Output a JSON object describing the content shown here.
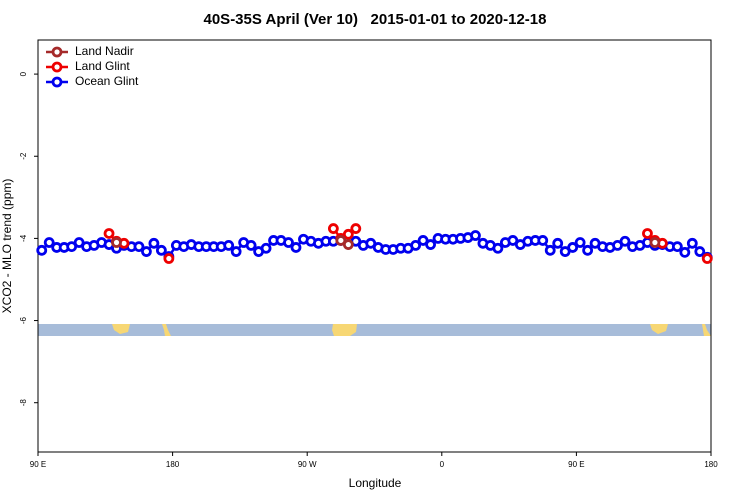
{
  "chart_data": {
    "type": "line",
    "title": "40S-35S April (Ver 10)   2015-01-01 to 2020-12-18",
    "x_label": "Longitude",
    "y_label": "XCO2 - MLO trend (ppm)",
    "xlim": [
      90,
      540
    ],
    "ylim": [
      -9.2,
      0.83
    ],
    "xticks": [
      {
        "value": 90,
        "label": "90 E"
      },
      180,
      {
        "value": 270,
        "label": "90 W"
      },
      {
        "value": 360,
        "label": "0"
      },
      {
        "value": 450,
        "label": "90 E"
      },
      {
        "value": 540,
        "label": "180"
      }
    ],
    "yticks": [
      0,
      -2,
      -4,
      -6,
      -8
    ],
    "legend": "top-left",
    "series": [
      {
        "name": "Land Nadir",
        "color": "#a52a2a",
        "x": [
          142.5,
          292.5,
          297.5,
          502.5
        ],
        "values": [
          -4.1,
          -4.05,
          -4.15,
          -4.1
        ]
      },
      {
        "name": "Land Glint",
        "color": "#ee0000",
        "x": [
          137.5,
          142.5,
          147.5,
          177.5,
          287.5,
          292.5,
          297.5,
          302.5,
          497.5,
          502.5,
          507.5,
          537.5
        ],
        "values": [
          -3.88,
          -4.07,
          -4.12,
          -4.49,
          -3.76,
          -4.0,
          -3.9,
          -3.76,
          -3.88,
          -4.05,
          -4.12,
          -4.49
        ]
      },
      {
        "name": "Ocean Glint",
        "color": "#0000ee",
        "x": [
          92.5,
          97.5,
          102.5,
          107.5,
          112.5,
          117.5,
          122.5,
          127.5,
          132.5,
          137.5,
          142.5,
          147.5,
          152.5,
          157.5,
          162.5,
          167.5,
          172.5,
          177.5,
          182.5,
          187.5,
          192.5,
          197.5,
          202.5,
          207.5,
          212.5,
          217.5,
          222.5,
          227.5,
          232.5,
          237.5,
          242.5,
          247.5,
          252.5,
          257.5,
          262.5,
          267.5,
          272.5,
          277.5,
          282.5,
          287.5,
          292.5,
          297.5,
          302.5,
          307.5,
          312.5,
          317.5,
          322.5,
          327.5,
          332.5,
          337.5,
          342.5,
          347.5,
          352.5,
          357.5,
          362.5,
          367.5,
          372.5,
          377.5,
          382.5,
          387.5,
          392.5,
          397.5,
          402.5,
          407.5,
          412.5,
          417.5,
          422.5,
          427.5,
          432.5,
          437.5,
          442.5,
          447.5,
          452.5,
          457.5,
          462.5,
          467.5,
          472.5,
          477.5,
          482.5,
          487.5,
          492.5,
          497.5,
          502.5,
          507.5,
          512.5,
          517.5,
          522.5,
          527.5,
          532.5,
          537.5
        ],
        "values": [
          -4.29,
          -4.1,
          -4.22,
          -4.22,
          -4.2,
          -4.1,
          -4.2,
          -4.17,
          -4.1,
          -4.15,
          -4.24,
          -4.17,
          -4.2,
          -4.2,
          -4.32,
          -4.12,
          -4.29,
          -4.44,
          -4.17,
          -4.2,
          -4.15,
          -4.2,
          -4.2,
          -4.2,
          -4.2,
          -4.17,
          -4.32,
          -4.1,
          -4.17,
          -4.32,
          -4.24,
          -4.05,
          -4.05,
          -4.1,
          -4.22,
          -4.02,
          -4.07,
          -4.12,
          -4.07,
          -4.07,
          -4.05,
          -4.0,
          -4.07,
          -4.17,
          -4.12,
          -4.22,
          -4.27,
          -4.27,
          -4.24,
          -4.24,
          -4.17,
          -4.05,
          -4.15,
          -4.0,
          -4.02,
          -4.02,
          -4.0,
          -3.98,
          -3.93,
          -4.12,
          -4.17,
          -4.24,
          -4.1,
          -4.05,
          -4.15,
          -4.07,
          -4.05,
          -4.05,
          -4.29,
          -4.12,
          -4.32,
          -4.22,
          -4.1,
          -4.29,
          -4.12,
          -4.2,
          -4.22,
          -4.17,
          -4.07,
          -4.2,
          -4.17,
          -4.1,
          -4.17,
          -4.15,
          -4.2,
          -4.2,
          -4.34,
          -4.12,
          -4.32,
          -4.46
        ]
      }
    ]
  }
}
